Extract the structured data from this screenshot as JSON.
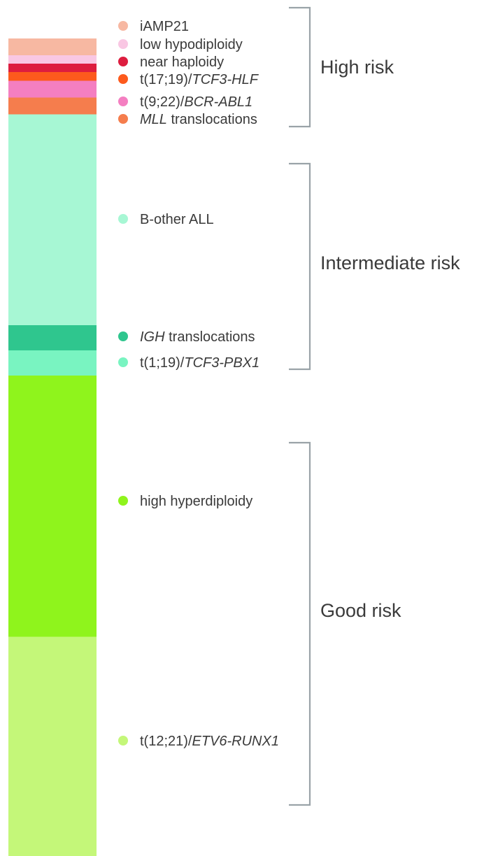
{
  "chart_data": {
    "type": "stacked-bar",
    "categories": [
      {
        "key": "iamp21",
        "parts": [
          {
            "text": "iAMP21",
            "italic": false
          }
        ],
        "value": 2.0,
        "color": "#f7b8a2",
        "group": "high"
      },
      {
        "key": "low-hypodiploidy",
        "parts": [
          {
            "text": "low hypodiploidy",
            "italic": false
          }
        ],
        "value": 1.0,
        "color": "#f9c7e3",
        "group": "high"
      },
      {
        "key": "near-haploidy",
        "parts": [
          {
            "text": "near haploidy",
            "italic": false
          }
        ],
        "value": 1.0,
        "color": "#dd1d3f",
        "group": "high"
      },
      {
        "key": "t17-19",
        "parts": [
          {
            "text": "t(17;19)/",
            "italic": false
          },
          {
            "text": "TCF3-HLF",
            "italic": true
          }
        ],
        "value": 1.0,
        "color": "#fd5a1d",
        "group": "high"
      },
      {
        "key": "t9-22",
        "parts": [
          {
            "text": "t(9;22)/",
            "italic": false
          },
          {
            "text": "BCR-ABL1",
            "italic": true
          }
        ],
        "value": 2.0,
        "color": "#f47fc1",
        "group": "high"
      },
      {
        "key": "mll",
        "parts": [
          {
            "text": "MLL",
            "italic": true
          },
          {
            "text": " translocations",
            "italic": false
          }
        ],
        "value": 2.0,
        "color": "#f57d4d",
        "group": "high"
      },
      {
        "key": "b-other",
        "parts": [
          {
            "text": "B-other ALL",
            "italic": false
          }
        ],
        "value": 25.0,
        "color": "#a7f7d4",
        "group": "intermediate"
      },
      {
        "key": "igh",
        "parts": [
          {
            "text": "IGH",
            "italic": true
          },
          {
            "text": " translocations",
            "italic": false
          }
        ],
        "value": 3.0,
        "color": "#2fc68e",
        "group": "intermediate"
      },
      {
        "key": "t1-19",
        "parts": [
          {
            "text": "t(1;19)/",
            "italic": false
          },
          {
            "text": "TCF3-PBX1",
            "italic": true
          }
        ],
        "value": 3.0,
        "color": "#79f4c1",
        "group": "intermediate"
      },
      {
        "key": "high-hyperdiploidy",
        "parts": [
          {
            "text": "high hyperdiploidy",
            "italic": false
          }
        ],
        "value": 31.0,
        "color": "#8ff41c",
        "group": "good"
      },
      {
        "key": "t12-21",
        "parts": [
          {
            "text": "t(12;21)/",
            "italic": false
          },
          {
            "text": "ETV6-RUNX1",
            "italic": true
          }
        ],
        "value": 26.0,
        "color": "#c4f779",
        "group": "good"
      }
    ],
    "groups": [
      {
        "key": "high",
        "label": "High risk"
      },
      {
        "key": "intermediate",
        "label": "Intermediate risk"
      },
      {
        "key": "good",
        "label": "Good risk"
      }
    ],
    "bracket_color": "#9aa3a8",
    "text_color": "#3a3a3a"
  }
}
